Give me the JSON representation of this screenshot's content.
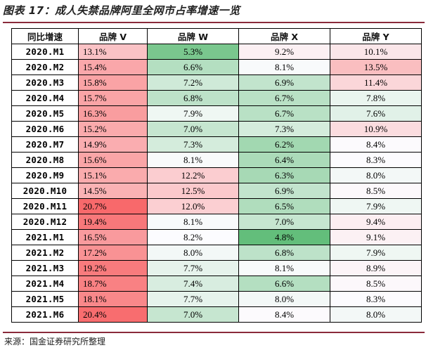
{
  "title": "图表 17：成人失禁品牌阿里全网市占率增速一览",
  "source": "来源：国金证券研究所整理",
  "table": {
    "headers": [
      "同比增速",
      "品牌 V",
      "品牌 W",
      "品牌 X",
      "品牌 Y"
    ],
    "rows": [
      [
        "2020.M1",
        "13.1%",
        "5.3%",
        "9.2%",
        "10.1%"
      ],
      [
        "2020.M2",
        "15.4%",
        "6.6%",
        "8.1%",
        "13.5%"
      ],
      [
        "2020.M3",
        "15.8%",
        "7.2%",
        "6.9%",
        "11.4%"
      ],
      [
        "2020.M4",
        "15.7%",
        "6.8%",
        "6.7%",
        "7.8%"
      ],
      [
        "2020.M5",
        "16.3%",
        "7.9%",
        "6.7%",
        "7.6%"
      ],
      [
        "2020.M6",
        "15.2%",
        "7.0%",
        "7.3%",
        "10.9%"
      ],
      [
        "2020.M7",
        "14.9%",
        "7.3%",
        "6.2%",
        "8.4%"
      ],
      [
        "2020.M8",
        "15.6%",
        "8.1%",
        "6.4%",
        "8.3%"
      ],
      [
        "2020.M9",
        "15.1%",
        "12.2%",
        "6.3%",
        "8.0%"
      ],
      [
        "2020.M10",
        "14.5%",
        "12.5%",
        "6.9%",
        "8.5%"
      ],
      [
        "2020.M11",
        "20.7%",
        "12.0%",
        "6.5%",
        "7.9%"
      ],
      [
        "2020.M12",
        "19.4%",
        "8.1%",
        "7.0%",
        "9.4%"
      ],
      [
        "2021.M1",
        "16.5%",
        "8.2%",
        "4.8%",
        "9.1%"
      ],
      [
        "2021.M2",
        "17.2%",
        "8.0%",
        "6.8%",
        "7.9%"
      ],
      [
        "2021.M3",
        "19.2%",
        "7.7%",
        "8.1%",
        "8.9%"
      ],
      [
        "2021.M4",
        "18.7%",
        "7.4%",
        "6.6%",
        "8.5%"
      ],
      [
        "2021.M5",
        "18.1%",
        "7.7%",
        "8.0%",
        "8.3%"
      ],
      [
        "2021.M6",
        "20.4%",
        "7.0%",
        "8.4%",
        "8.0%"
      ]
    ]
  },
  "colors": {
    "rule": "#8a2b3b",
    "high": "#f8696b",
    "mid": "#fcfcff",
    "low": "#63be7b"
  }
}
